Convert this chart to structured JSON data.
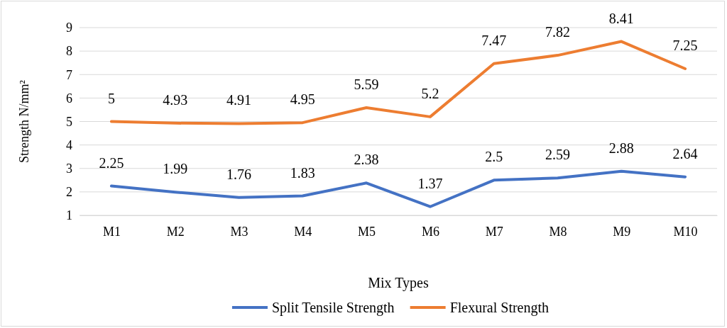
{
  "chart_data": {
    "type": "line",
    "xlabel": "Mix Types",
    "ylabel": "Strength N/mm²",
    "categories": [
      "M1",
      "M2",
      "M3",
      "M4",
      "M5",
      "M6",
      "M7",
      "M8",
      "M9",
      "M10"
    ],
    "series": [
      {
        "name": "Split Tensile Strength",
        "color": "#4472c4",
        "values": [
          2.25,
          1.99,
          1.76,
          1.83,
          2.38,
          1.37,
          2.5,
          2.59,
          2.88,
          2.64
        ]
      },
      {
        "name": "Flexural Strength",
        "color": "#ed7d31",
        "values": [
          5,
          4.93,
          4.91,
          4.95,
          5.59,
          5.2,
          7.47,
          7.82,
          8.41,
          7.25
        ]
      }
    ],
    "ylim": [
      1,
      9
    ],
    "yticks": [
      1,
      2,
      3,
      4,
      5,
      6,
      7,
      8,
      9
    ],
    "grid": "y",
    "legend": "bottom",
    "data_labels": true,
    "marker": "none",
    "line_style": "solid"
  }
}
